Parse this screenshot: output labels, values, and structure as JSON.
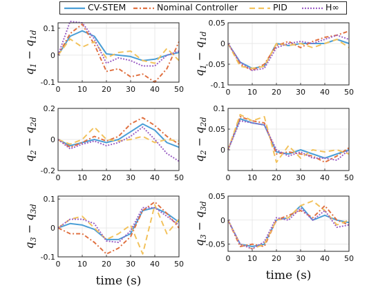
{
  "legend": [
    {
      "label": "CV-STEM",
      "color": "#4a9ed6",
      "dash": ""
    },
    {
      "label": "Nominal Controller",
      "color": "#e07040",
      "dash": "6,3,2,3"
    },
    {
      "label": "PID",
      "color": "#f2c25c",
      "dash": "8,5"
    },
    {
      "label": "H∞",
      "color": "#9a5ec4",
      "dash": "2,2"
    }
  ],
  "chart_data": [
    {
      "type": "line",
      "title": "",
      "xlabel": "",
      "ylabel": "q1 − q1d",
      "xlim": [
        0,
        50
      ],
      "ylim": [
        -0.1,
        0.12
      ],
      "xticks": [
        "0",
        "10",
        "20",
        "30",
        "40",
        "50"
      ],
      "yticks": [
        "0.1",
        "0",
        "-0.1"
      ],
      "ytick_values": [
        0.1,
        0,
        -0.1
      ],
      "grid": true,
      "x": [
        0,
        5,
        10,
        15,
        20,
        25,
        30,
        35,
        40,
        45,
        50
      ],
      "series": [
        {
          "name": "CV-STEM",
          "values": [
            0.0,
            0.07,
            0.09,
            0.07,
            0.005,
            0.0,
            -0.005,
            -0.02,
            -0.015,
            0.0,
            0.01
          ]
        },
        {
          "name": "Nominal Controller",
          "values": [
            0.0,
            0.08,
            0.115,
            0.04,
            -0.06,
            -0.05,
            -0.08,
            -0.07,
            -0.1,
            -0.05,
            0.05
          ]
        },
        {
          "name": "PID",
          "values": [
            0.0,
            0.06,
            0.03,
            0.05,
            -0.01,
            0.01,
            0.015,
            -0.02,
            -0.03,
            0.025,
            -0.02
          ]
        },
        {
          "name": "H∞",
          "values": [
            0.0,
            0.125,
            0.12,
            0.06,
            -0.03,
            -0.01,
            -0.02,
            -0.04,
            -0.04,
            0.0,
            0.015
          ]
        }
      ]
    },
    {
      "type": "line",
      "title": "",
      "xlabel": "",
      "ylabel": "q̇1 − q̇1d",
      "xlim": [
        0,
        50
      ],
      "ylim": [
        -0.1,
        0.05
      ],
      "xticks": [
        "0",
        "10",
        "20",
        "30",
        "40",
        "50"
      ],
      "yticks": [
        "0.05",
        "0",
        "-0.05",
        "-0.1"
      ],
      "ytick_values": [
        0.05,
        0,
        -0.05,
        -0.1
      ],
      "grid": true,
      "x": [
        0,
        5,
        10,
        15,
        20,
        25,
        30,
        35,
        40,
        45,
        50
      ],
      "series": [
        {
          "name": "CV-STEM",
          "values": [
            0.0,
            -0.045,
            -0.06,
            -0.055,
            0.0,
            -0.005,
            0.0,
            0.0,
            0.0,
            0.01,
            0.0
          ]
        },
        {
          "name": "Nominal Controller",
          "values": [
            0.0,
            -0.05,
            -0.065,
            -0.05,
            -0.005,
            0.005,
            -0.01,
            0.005,
            0.015,
            0.02,
            0.03
          ]
        },
        {
          "name": "PID",
          "values": [
            0.0,
            -0.055,
            -0.06,
            -0.055,
            0.0,
            -0.005,
            0.0,
            -0.01,
            0.0,
            0.01,
            -0.01
          ]
        },
        {
          "name": "H∞",
          "values": [
            0.0,
            -0.045,
            -0.065,
            -0.06,
            -0.01,
            0.0,
            0.005,
            0.0,
            0.01,
            0.02,
            0.01
          ]
        }
      ]
    },
    {
      "type": "line",
      "title": "",
      "xlabel": "",
      "ylabel": "q2 − q2d",
      "xlim": [
        0,
        50
      ],
      "ylim": [
        -0.2,
        0.2
      ],
      "xticks": [
        "0",
        "10",
        "20",
        "30",
        "40",
        "50"
      ],
      "yticks": [
        "0.2",
        "0",
        "-0.2"
      ],
      "ytick_values": [
        0.2,
        0,
        -0.2
      ],
      "grid": true,
      "x": [
        0,
        5,
        10,
        15,
        20,
        25,
        30,
        35,
        40,
        45,
        50
      ],
      "series": [
        {
          "name": "CV-STEM",
          "values": [
            0.0,
            -0.04,
            -0.02,
            0.0,
            -0.02,
            0.0,
            0.05,
            0.1,
            0.06,
            -0.02,
            -0.05
          ]
        },
        {
          "name": "Nominal Controller",
          "values": [
            0.0,
            -0.05,
            -0.02,
            0.02,
            -0.01,
            0.02,
            0.1,
            0.14,
            0.09,
            0.02,
            -0.03
          ]
        },
        {
          "name": "PID",
          "values": [
            0.0,
            -0.03,
            0.0,
            0.08,
            0.0,
            -0.01,
            0.0,
            0.02,
            -0.02,
            0.0,
            -0.01
          ]
        },
        {
          "name": "H∞",
          "values": [
            0.0,
            -0.06,
            -0.03,
            -0.01,
            -0.04,
            -0.02,
            0.02,
            0.08,
            0.0,
            -0.09,
            -0.14
          ]
        }
      ]
    },
    {
      "type": "line",
      "title": "",
      "xlabel": "",
      "ylabel": "q̇2 − q̇2d",
      "xlim": [
        0,
        50
      ],
      "ylim": [
        -0.05,
        0.1
      ],
      "xticks": [
        "0",
        "10",
        "20",
        "30",
        "40",
        "50"
      ],
      "yticks": [
        "0.1",
        "0.05",
        "0"
      ],
      "ytick_values": [
        0.1,
        0.05,
        0
      ],
      "grid": true,
      "x": [
        0,
        5,
        10,
        15,
        20,
        25,
        30,
        35,
        40,
        45,
        50
      ],
      "series": [
        {
          "name": "CV-STEM",
          "values": [
            0.0,
            0.075,
            0.065,
            0.06,
            -0.005,
            -0.01,
            0.0,
            -0.01,
            -0.02,
            -0.01,
            0.0
          ]
        },
        {
          "name": "Nominal Controller",
          "values": [
            0.0,
            0.08,
            0.07,
            0.065,
            -0.01,
            -0.005,
            -0.01,
            -0.015,
            -0.03,
            -0.015,
            0.005
          ]
        },
        {
          "name": "PID",
          "values": [
            0.0,
            0.085,
            0.07,
            0.08,
            -0.03,
            0.01,
            -0.02,
            0.0,
            -0.005,
            0.0,
            -0.01
          ]
        },
        {
          "name": "H∞",
          "values": [
            0.0,
            0.07,
            0.065,
            0.06,
            0.0,
            -0.015,
            -0.005,
            -0.02,
            -0.02,
            -0.025,
            0.0
          ]
        }
      ]
    },
    {
      "type": "line",
      "title": "",
      "xlabel": "time (s)",
      "ylabel": "q3 − q3d",
      "xlim": [
        0,
        50
      ],
      "ylim": [
        -0.1,
        0.11
      ],
      "xticks": [
        "0",
        "10",
        "20",
        "30",
        "40",
        "50"
      ],
      "yticks": [
        "0.1",
        "0",
        "-0.1"
      ],
      "ytick_values": [
        0.1,
        0,
        -0.1
      ],
      "grid": true,
      "x": [
        0,
        5,
        10,
        15,
        20,
        25,
        30,
        35,
        40,
        45,
        50
      ],
      "series": [
        {
          "name": "CV-STEM",
          "values": [
            0.0,
            0.015,
            0.01,
            -0.005,
            -0.04,
            -0.04,
            -0.02,
            0.06,
            0.07,
            0.05,
            0.02
          ]
        },
        {
          "name": "Nominal Controller",
          "values": [
            0.0,
            -0.02,
            -0.02,
            -0.05,
            -0.09,
            -0.07,
            -0.03,
            0.06,
            0.09,
            0.05,
            0.0
          ]
        },
        {
          "name": "PID",
          "values": [
            0.0,
            0.03,
            0.04,
            0.0,
            -0.04,
            -0.02,
            0.01,
            -0.09,
            0.08,
            -0.02,
            0.03
          ]
        },
        {
          "name": "H∞",
          "values": [
            0.0,
            0.03,
            0.03,
            0.015,
            -0.045,
            -0.05,
            -0.01,
            0.07,
            0.07,
            0.04,
            0.01
          ]
        }
      ]
    },
    {
      "type": "line",
      "title": "",
      "xlabel": "time (s)",
      "ylabel": "q̇3 − q̇3d",
      "xlim": [
        0,
        50
      ],
      "ylim": [
        -0.065,
        0.05
      ],
      "xticks": [
        "0",
        "10",
        "20",
        "30",
        "40",
        "50"
      ],
      "yticks": [
        "0.05",
        "0",
        "-0.05"
      ],
      "ytick_values": [
        0.05,
        0,
        -0.05
      ],
      "grid": true,
      "x": [
        0,
        5,
        10,
        15,
        20,
        25,
        30,
        35,
        40,
        45,
        50
      ],
      "series": [
        {
          "name": "CV-STEM",
          "values": [
            0.0,
            -0.05,
            -0.055,
            -0.05,
            0.0,
            0.005,
            0.03,
            0.0,
            0.01,
            0.0,
            -0.005
          ]
        },
        {
          "name": "Nominal Controller",
          "values": [
            0.0,
            -0.055,
            -0.05,
            -0.055,
            0.0,
            0.01,
            0.02,
            0.005,
            0.03,
            0.0,
            -0.01
          ]
        },
        {
          "name": "PID",
          "values": [
            0.0,
            -0.05,
            -0.06,
            -0.05,
            0.0,
            0.005,
            0.03,
            0.04,
            0.02,
            -0.01,
            0.0
          ]
        },
        {
          "name": "H∞",
          "values": [
            0.0,
            -0.05,
            -0.06,
            -0.045,
            0.005,
            0.0,
            0.025,
            0.0,
            0.02,
            -0.015,
            -0.01
          ]
        }
      ]
    }
  ]
}
